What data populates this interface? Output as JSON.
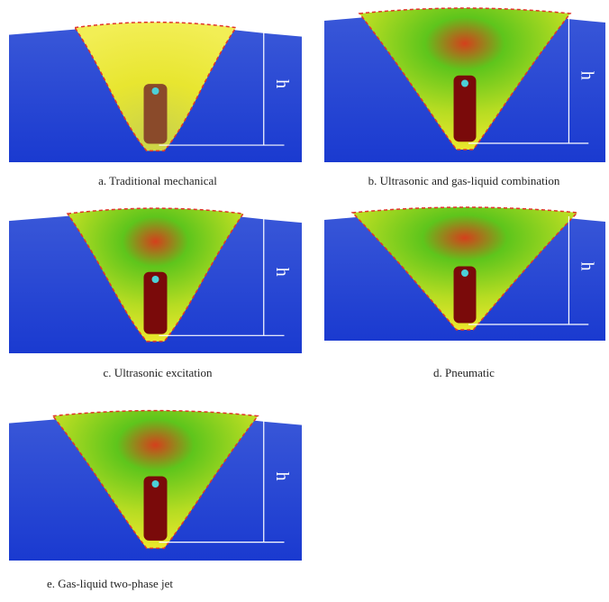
{
  "panels": [
    {
      "caption": "a. Traditional mechanical",
      "height_label": "h"
    },
    {
      "caption": "b. Ultrasonic and gas-liquid combination",
      "height_label": "h"
    },
    {
      "caption": "c. Ultrasonic excitation",
      "height_label": "h"
    },
    {
      "caption": "d. Pneumatic",
      "height_label": "h"
    },
    {
      "caption": "e. Gas-liquid two-phase jet",
      "height_label": "h"
    }
  ]
}
